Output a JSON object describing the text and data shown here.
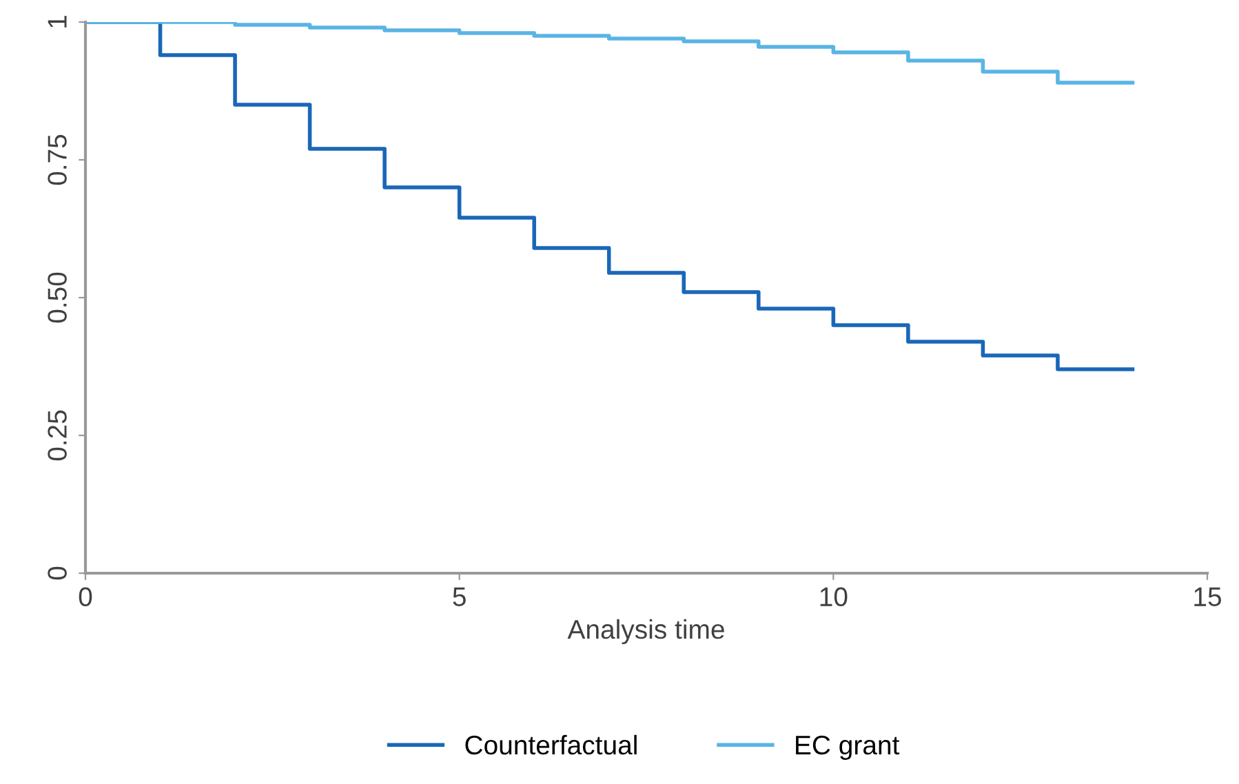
{
  "chart_data": {
    "type": "step",
    "xlabel": "Analysis time",
    "x": [
      0,
      1,
      2,
      3,
      4,
      5,
      6,
      7,
      8,
      9,
      10,
      11,
      12,
      13,
      14
    ],
    "series": [
      {
        "name": "Counterfactual",
        "color": "#1a67b8",
        "values": [
          1,
          0.94,
          0.85,
          0.77,
          0.7,
          0.645,
          0.59,
          0.545,
          0.51,
          0.48,
          0.45,
          0.42,
          0.395,
          0.37,
          0.37
        ]
      },
      {
        "name": "EC grant",
        "color": "#5ab4e5",
        "values": [
          1,
          1,
          0.995,
          0.99,
          0.985,
          0.98,
          0.975,
          0.97,
          0.965,
          0.955,
          0.945,
          0.93,
          0.91,
          0.89,
          0.89
        ]
      }
    ],
    "xlim": [
      0,
      15
    ],
    "xticks": [
      0,
      5,
      10,
      15
    ],
    "ylim": [
      0,
      1
    ],
    "yticks": [
      0,
      {
        "value": 0.25,
        "label": "0.25"
      },
      {
        "value": 0.5,
        "label": "0.50"
      },
      {
        "value": 0.75,
        "label": "0.75"
      },
      1
    ],
    "grid": false,
    "legend": "bottom"
  }
}
